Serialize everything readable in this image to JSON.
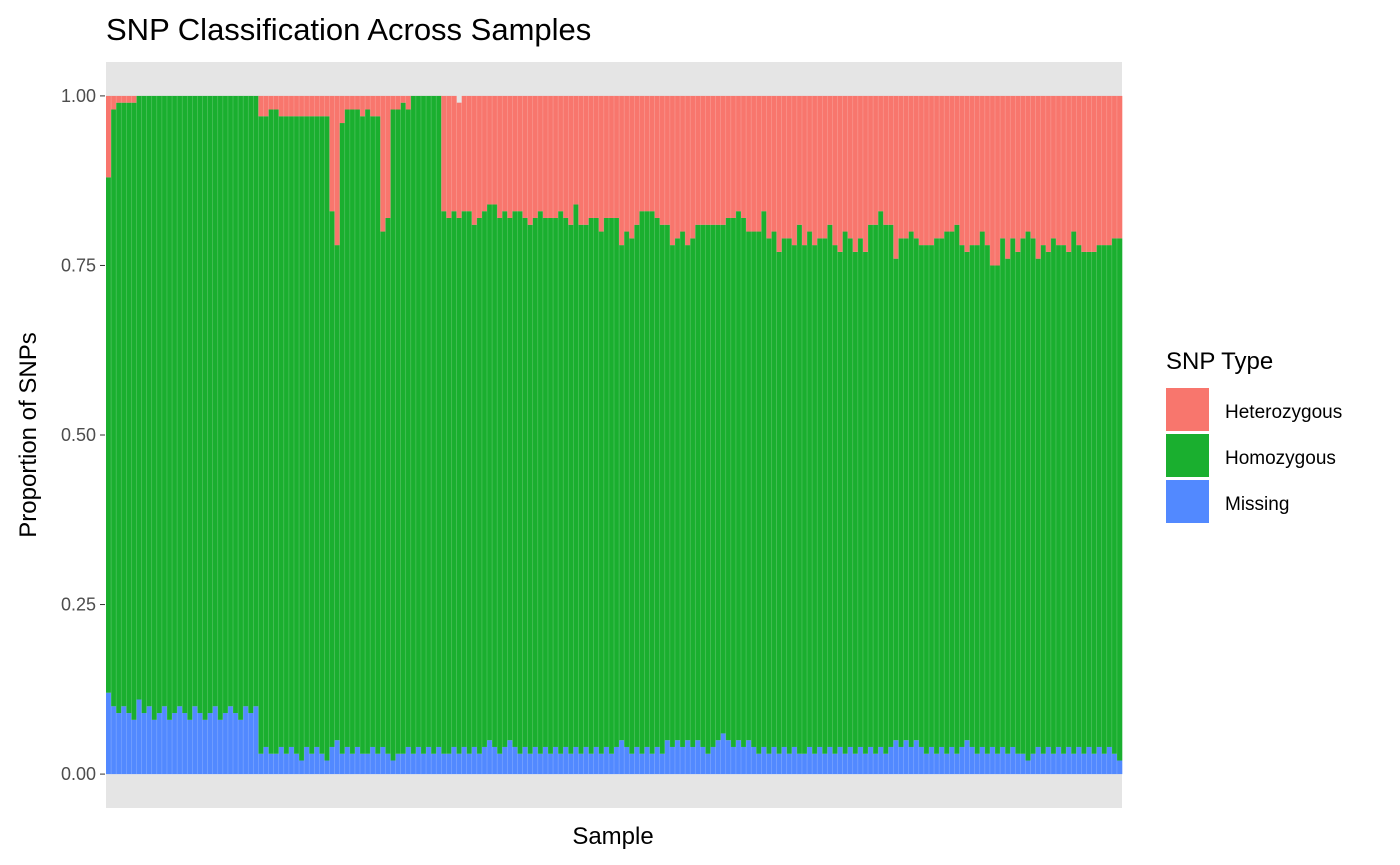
{
  "colors": {
    "panel_background": "#e5e5e5",
    "bar_separator": "#ffffff",
    "tick_text": "#4d4d4d"
  },
  "chart_data": {
    "type": "bar",
    "stacked": true,
    "title": "SNP Classification Across Samples",
    "xlabel": "Sample",
    "ylabel": "Proportion of SNPs",
    "ylim": [
      -0.05,
      1.05
    ],
    "yticks": [
      "0.00",
      "0.25",
      "0.50",
      "0.75",
      "1.00"
    ],
    "x_tick_labels_shown": false,
    "grid": false,
    "legend": {
      "title": "SNP Type",
      "position": "right",
      "entries": [
        {
          "label": "Heterozygous",
          "color": "#F8766D"
        },
        {
          "label": "Homozygous",
          "color": "#1AAF2F"
        },
        {
          "label": "Missing",
          "color": "#5289FF"
        }
      ]
    },
    "n_samples": 200,
    "series": [
      {
        "name": "Missing",
        "color": "#5289FF",
        "values": [
          0.12,
          0.1,
          0.09,
          0.1,
          0.09,
          0.08,
          0.11,
          0.09,
          0.1,
          0.08,
          0.09,
          0.1,
          0.08,
          0.09,
          0.1,
          0.09,
          0.08,
          0.1,
          0.09,
          0.08,
          0.09,
          0.1,
          0.08,
          0.09,
          0.1,
          0.09,
          0.08,
          0.1,
          0.09,
          0.1,
          0.03,
          0.04,
          0.03,
          0.03,
          0.04,
          0.03,
          0.04,
          0.03,
          0.02,
          0.04,
          0.03,
          0.04,
          0.03,
          0.02,
          0.04,
          0.05,
          0.03,
          0.04,
          0.03,
          0.04,
          0.03,
          0.03,
          0.04,
          0.03,
          0.04,
          0.03,
          0.02,
          0.03,
          0.03,
          0.04,
          0.03,
          0.04,
          0.03,
          0.04,
          0.03,
          0.04,
          0.03,
          0.03,
          0.04,
          0.03,
          0.04,
          0.03,
          0.04,
          0.03,
          0.04,
          0.05,
          0.04,
          0.03,
          0.04,
          0.05,
          0.04,
          0.03,
          0.04,
          0.03,
          0.04,
          0.03,
          0.04,
          0.03,
          0.04,
          0.03,
          0.04,
          0.03,
          0.04,
          0.03,
          0.04,
          0.03,
          0.04,
          0.03,
          0.04,
          0.03,
          0.04,
          0.05,
          0.04,
          0.03,
          0.04,
          0.03,
          0.04,
          0.03,
          0.04,
          0.03,
          0.05,
          0.04,
          0.05,
          0.04,
          0.05,
          0.04,
          0.05,
          0.04,
          0.03,
          0.04,
          0.05,
          0.06,
          0.05,
          0.04,
          0.05,
          0.04,
          0.05,
          0.04,
          0.03,
          0.04,
          0.03,
          0.04,
          0.03,
          0.04,
          0.03,
          0.04,
          0.03,
          0.03,
          0.04,
          0.03,
          0.04,
          0.03,
          0.04,
          0.03,
          0.04,
          0.03,
          0.04,
          0.03,
          0.04,
          0.03,
          0.04,
          0.03,
          0.04,
          0.03,
          0.04,
          0.05,
          0.04,
          0.05,
          0.04,
          0.05,
          0.04,
          0.03,
          0.04,
          0.03,
          0.04,
          0.03,
          0.04,
          0.03,
          0.04,
          0.05,
          0.04,
          0.03,
          0.04,
          0.03,
          0.04,
          0.03,
          0.04,
          0.03,
          0.04,
          0.03,
          0.03,
          0.02,
          0.03,
          0.04,
          0.03,
          0.04,
          0.03,
          0.04,
          0.03,
          0.04,
          0.03,
          0.04,
          0.03,
          0.04,
          0.03,
          0.04,
          0.03,
          0.04,
          0.03,
          0.02
        ]
      },
      {
        "name": "Homozygous",
        "color": "#1AAF2F",
        "values": [
          0.76,
          0.88,
          0.9,
          0.89,
          0.9,
          0.91,
          0.89,
          0.91,
          0.9,
          0.92,
          0.91,
          0.9,
          0.92,
          0.91,
          0.9,
          0.91,
          0.92,
          0.9,
          0.91,
          0.92,
          0.91,
          0.9,
          0.92,
          0.91,
          0.9,
          0.91,
          0.92,
          0.9,
          0.91,
          0.9,
          0.94,
          0.93,
          0.95,
          0.95,
          0.93,
          0.94,
          0.93,
          0.94,
          0.95,
          0.93,
          0.94,
          0.93,
          0.94,
          0.95,
          0.79,
          0.73,
          0.93,
          0.94,
          0.95,
          0.94,
          0.94,
          0.95,
          0.93,
          0.94,
          0.76,
          0.79,
          0.96,
          0.95,
          0.96,
          0.94,
          0.97,
          0.96,
          0.97,
          0.96,
          0.97,
          0.96,
          0.8,
          0.79,
          0.79,
          0.79,
          0.79,
          0.8,
          0.77,
          0.79,
          0.79,
          0.79,
          0.8,
          0.79,
          0.79,
          0.77,
          0.79,
          0.8,
          0.78,
          0.78,
          0.78,
          0.8,
          0.78,
          0.79,
          0.78,
          0.8,
          0.78,
          0.78,
          0.8,
          0.78,
          0.77,
          0.79,
          0.78,
          0.77,
          0.78,
          0.79,
          0.78,
          0.73,
          0.76,
          0.76,
          0.77,
          0.8,
          0.79,
          0.8,
          0.78,
          0.78,
          0.76,
          0.74,
          0.74,
          0.76,
          0.73,
          0.75,
          0.76,
          0.77,
          0.78,
          0.77,
          0.76,
          0.75,
          0.77,
          0.78,
          0.78,
          0.78,
          0.75,
          0.76,
          0.77,
          0.79,
          0.76,
          0.76,
          0.74,
          0.75,
          0.76,
          0.74,
          0.78,
          0.75,
          0.76,
          0.75,
          0.75,
          0.76,
          0.77,
          0.75,
          0.73,
          0.77,
          0.75,
          0.74,
          0.75,
          0.74,
          0.77,
          0.78,
          0.79,
          0.78,
          0.77,
          0.71,
          0.75,
          0.74,
          0.76,
          0.74,
          0.74,
          0.75,
          0.74,
          0.76,
          0.75,
          0.77,
          0.76,
          0.78,
          0.74,
          0.72,
          0.74,
          0.75,
          0.76,
          0.75,
          0.71,
          0.72,
          0.75,
          0.73,
          0.75,
          0.74,
          0.76,
          0.78,
          0.76,
          0.72,
          0.75,
          0.73,
          0.76,
          0.74,
          0.75,
          0.73,
          0.77,
          0.74,
          0.74,
          0.73,
          0.74,
          0.74,
          0.75,
          0.74,
          0.76,
          0.77
        ]
      },
      {
        "name": "Heterozygous",
        "color": "#F8766D",
        "values": [
          0.12,
          0.02,
          0.01,
          0.01,
          0.01,
          0.01,
          0.0,
          0.0,
          0.0,
          0.0,
          0.0,
          0.0,
          0.0,
          0.0,
          0.0,
          0.0,
          0.0,
          0.0,
          0.0,
          0.0,
          0.0,
          0.0,
          0.0,
          0.0,
          0.0,
          0.0,
          0.0,
          0.0,
          0.0,
          0.0,
          0.03,
          0.03,
          0.02,
          0.02,
          0.03,
          0.03,
          0.03,
          0.03,
          0.03,
          0.03,
          0.03,
          0.03,
          0.03,
          0.03,
          0.17,
          0.22,
          0.04,
          0.02,
          0.02,
          0.02,
          0.03,
          0.02,
          0.03,
          0.03,
          0.2,
          0.18,
          0.02,
          0.02,
          0.01,
          0.02,
          0.0,
          0.0,
          0.0,
          0.0,
          0.0,
          0.0,
          0.17,
          0.18,
          0.17,
          0.17,
          0.17,
          0.17,
          0.19,
          0.18,
          0.17,
          0.16,
          0.16,
          0.18,
          0.17,
          0.18,
          0.17,
          0.17,
          0.18,
          0.19,
          0.18,
          0.17,
          0.18,
          0.18,
          0.18,
          0.17,
          0.18,
          0.19,
          0.16,
          0.19,
          0.19,
          0.18,
          0.18,
          0.2,
          0.18,
          0.18,
          0.18,
          0.22,
          0.2,
          0.21,
          0.19,
          0.17,
          0.17,
          0.17,
          0.18,
          0.19,
          0.19,
          0.22,
          0.21,
          0.2,
          0.22,
          0.21,
          0.19,
          0.19,
          0.19,
          0.19,
          0.19,
          0.19,
          0.18,
          0.18,
          0.17,
          0.18,
          0.2,
          0.2,
          0.2,
          0.17,
          0.21,
          0.2,
          0.23,
          0.21,
          0.21,
          0.22,
          0.19,
          0.22,
          0.2,
          0.22,
          0.21,
          0.21,
          0.19,
          0.22,
          0.23,
          0.2,
          0.21,
          0.23,
          0.21,
          0.23,
          0.19,
          0.19,
          0.17,
          0.19,
          0.19,
          0.24,
          0.21,
          0.21,
          0.2,
          0.21,
          0.22,
          0.22,
          0.22,
          0.21,
          0.21,
          0.2,
          0.2,
          0.19,
          0.22,
          0.23,
          0.22,
          0.22,
          0.2,
          0.22,
          0.25,
          0.25,
          0.21,
          0.24,
          0.21,
          0.23,
          0.21,
          0.2,
          0.21,
          0.24,
          0.22,
          0.23,
          0.21,
          0.22,
          0.22,
          0.23,
          0.2,
          0.22,
          0.23,
          0.23,
          0.23,
          0.22,
          0.22,
          0.22,
          0.21,
          0.21
        ]
      }
    ]
  }
}
